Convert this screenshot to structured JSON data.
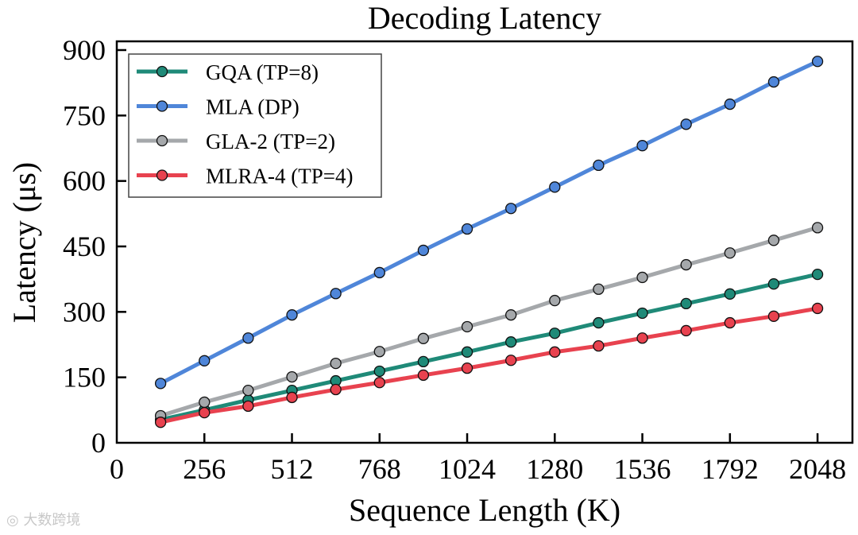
{
  "chart_data": {
    "type": "line",
    "title": "Decoding Latency",
    "xlabel": "Sequence Length (K)",
    "ylabel": "Latency (μs)",
    "xlim": [
      0,
      2150
    ],
    "ylim": [
      0,
      920
    ],
    "xticks": [
      0,
      256,
      512,
      768,
      1024,
      1280,
      1536,
      1792,
      2048
    ],
    "yticks": [
      0,
      150,
      300,
      450,
      600,
      750,
      900
    ],
    "grid": false,
    "legend_position": "top-left",
    "x": [
      128,
      256,
      384,
      512,
      640,
      768,
      896,
      1024,
      1152,
      1280,
      1408,
      1536,
      1664,
      1792,
      1920,
      2048
    ],
    "series": [
      {
        "name": "GQA (TP=8)",
        "color": "#1f8a78",
        "values": [
          53,
          75,
          98,
          120,
          142,
          164,
          186,
          208,
          231,
          251,
          275,
          297,
          319,
          341,
          364,
          386
        ]
      },
      {
        "name": "MLA (DP)",
        "color": "#4f86d9",
        "values": [
          136,
          188,
          240,
          293,
          342,
          390,
          441,
          490,
          537,
          586,
          636,
          681,
          730,
          776,
          827,
          874
        ]
      },
      {
        "name": "GLA-2 (TP=2)",
        "color": "#a5a8ab",
        "values": [
          62,
          93,
          120,
          151,
          182,
          209,
          239,
          266,
          293,
          326,
          352,
          379,
          408,
          435,
          464,
          493
        ]
      },
      {
        "name": "MLRA-4 (TP=4)",
        "color": "#e8424f",
        "values": [
          47,
          69,
          84,
          104,
          122,
          138,
          155,
          171,
          189,
          208,
          222,
          240,
          257,
          275,
          290,
          308
        ]
      }
    ]
  },
  "watermark": "大数跨境"
}
